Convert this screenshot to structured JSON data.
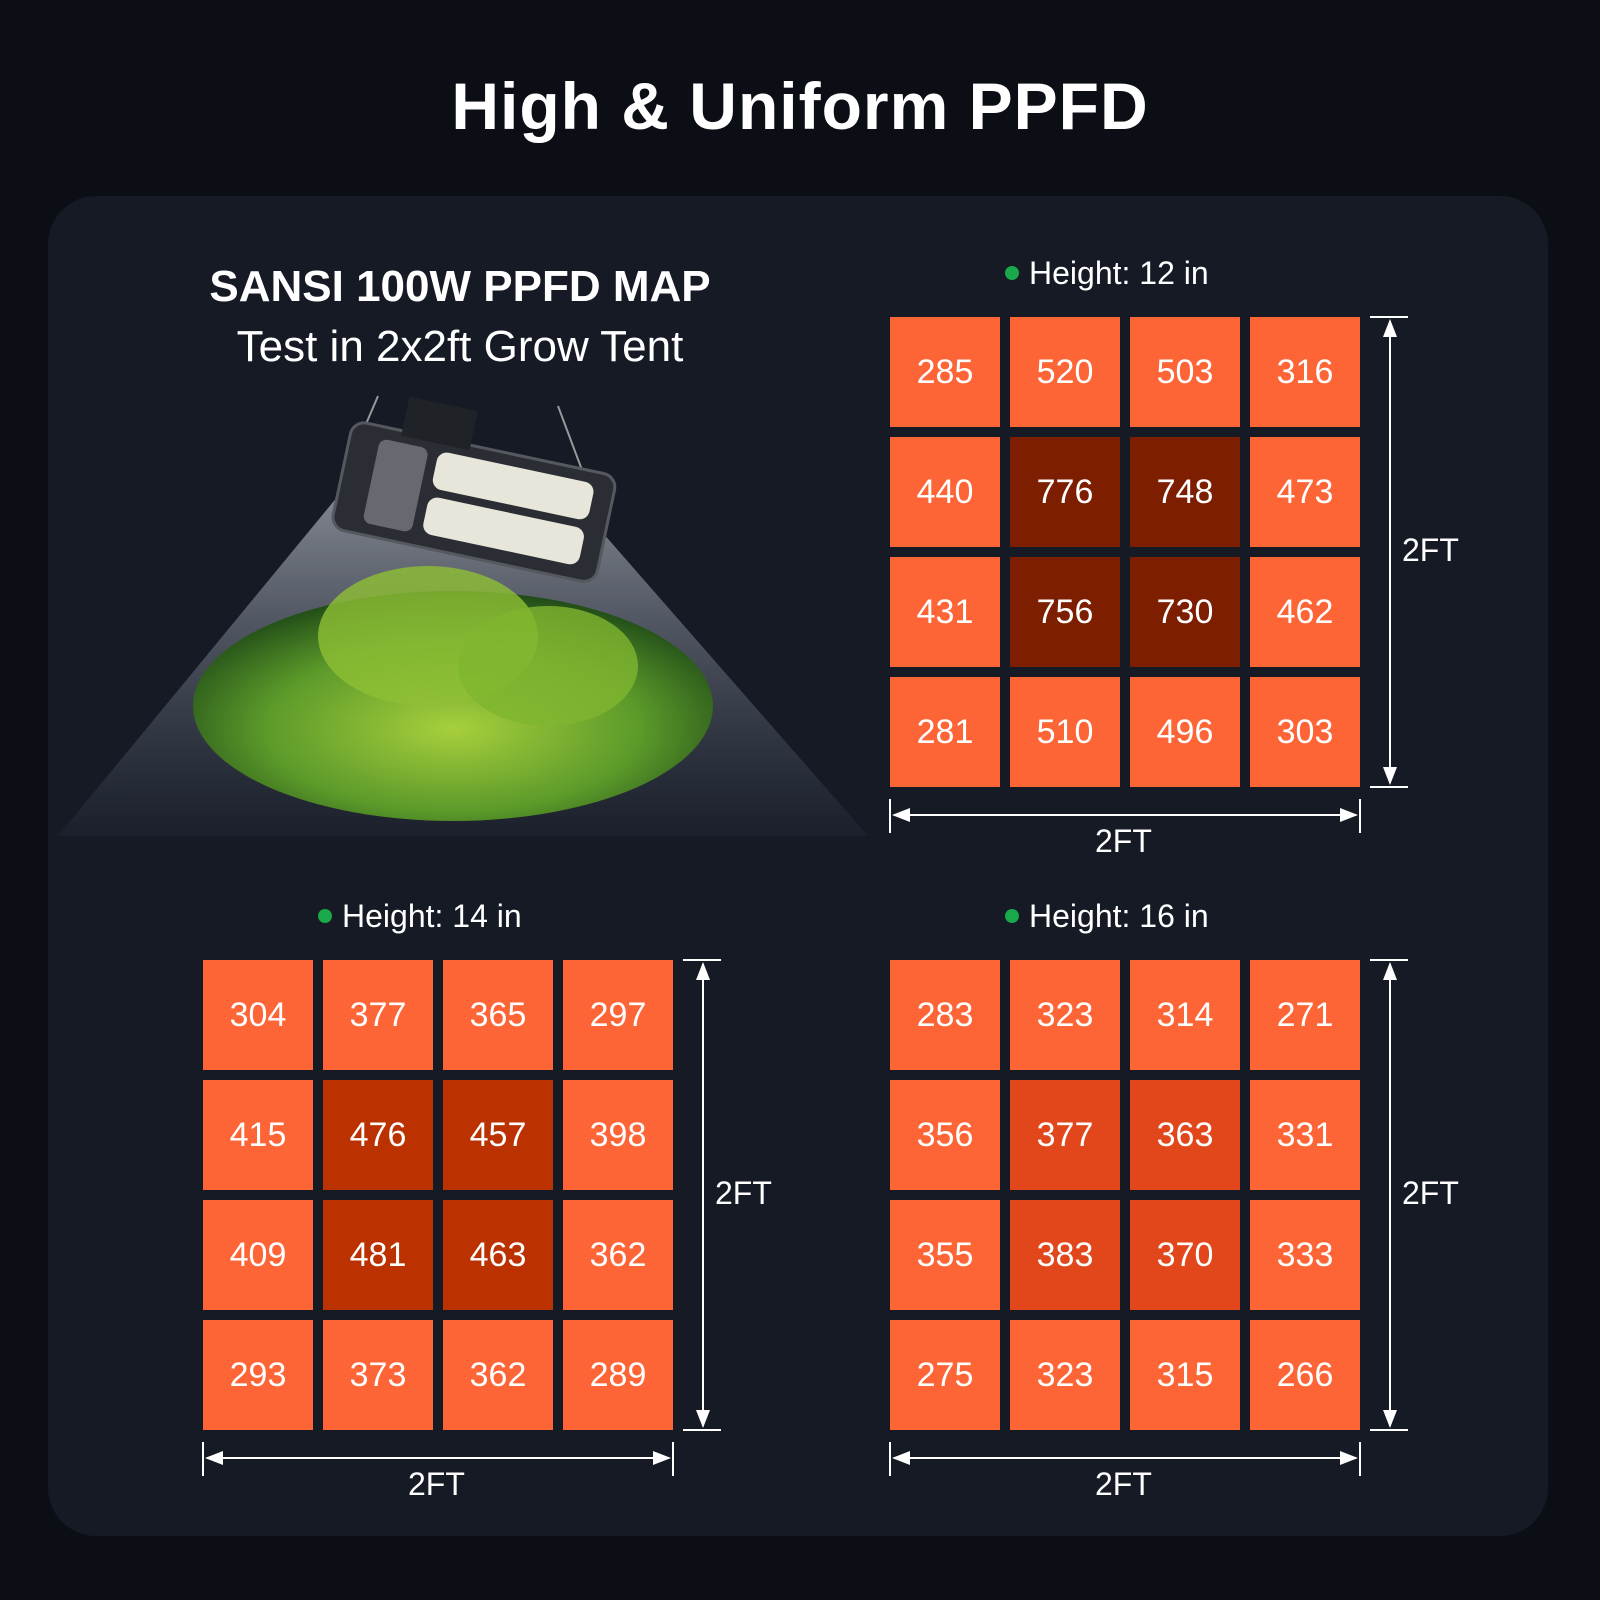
{
  "title": "High & Uniform PPFD",
  "map_title": "SANSI 100W PPFD MAP",
  "map_subtitle": "Test in 2x2ft Grow Tent",
  "colors": {
    "background": "#0b0e15",
    "panel": "#151a25",
    "cell_light": "#fd6436",
    "dot": "#19a84a"
  },
  "chart_data": [
    {
      "type": "heatmap",
      "title": "Height: 12 in",
      "xlabel": "2FT",
      "ylabel": "2FT",
      "center_color": "#7e1e00",
      "values": [
        [
          285,
          520,
          503,
          316
        ],
        [
          440,
          776,
          748,
          473
        ],
        [
          431,
          756,
          730,
          462
        ],
        [
          281,
          510,
          496,
          303
        ]
      ]
    },
    {
      "type": "heatmap",
      "title": "Height: 14 in",
      "xlabel": "2FT",
      "ylabel": "2FT",
      "center_color": "#bb3100",
      "values": [
        [
          304,
          377,
          365,
          297
        ],
        [
          415,
          476,
          457,
          398
        ],
        [
          409,
          481,
          463,
          362
        ],
        [
          293,
          373,
          362,
          289
        ]
      ]
    },
    {
      "type": "heatmap",
      "title": "Height: 16 in",
      "xlabel": "2FT",
      "ylabel": "2FT",
      "center_color": "#e2471c",
      "values": [
        [
          283,
          323,
          314,
          271
        ],
        [
          356,
          377,
          363,
          331
        ],
        [
          355,
          383,
          370,
          333
        ],
        [
          275,
          323,
          315,
          266
        ]
      ]
    }
  ]
}
